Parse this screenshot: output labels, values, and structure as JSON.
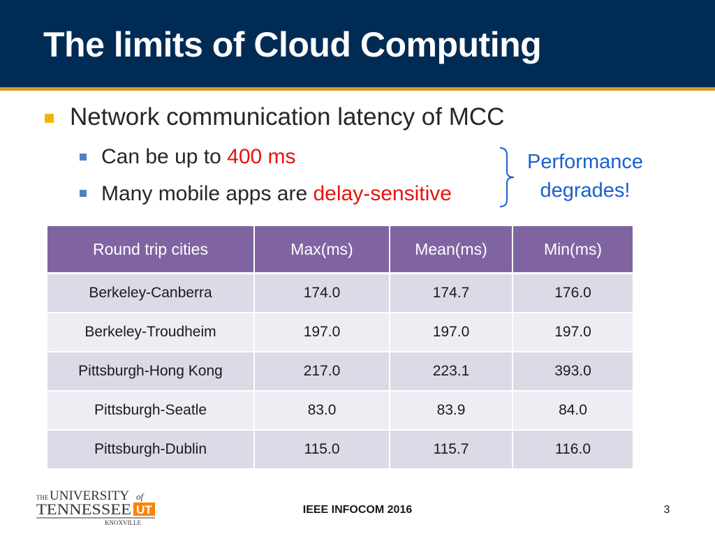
{
  "slide": {
    "title": "The limits of Cloud Computing",
    "bullets": {
      "main": "Network communication latency of MCC",
      "sub1_prefix": "Can be up to ",
      "sub1_highlight": "400 ms",
      "sub2_prefix": "Many mobile apps are ",
      "sub2_highlight": "delay-sensitive"
    },
    "callout": {
      "line1": "Performance",
      "line2": "degrades!"
    },
    "colors": {
      "header": "#002b55",
      "accent": "#c9a227",
      "highlight": "#e8120c",
      "callout": "#1a5fd1",
      "table_header": "#8064a2"
    }
  },
  "table": {
    "headers": [
      "Round trip cities",
      "Max(ms)",
      "Mean(ms)",
      "Min(ms)"
    ],
    "rows": [
      [
        "Berkeley-Canberra",
        "174.0",
        "174.7",
        "176.0"
      ],
      [
        "Berkeley-Troudheim",
        "197.0",
        "197.0",
        "197.0"
      ],
      [
        "Pittsburgh-Hong Kong",
        "217.0",
        "223.1",
        "393.0"
      ],
      [
        "Pittsburgh-Seatle",
        "83.0",
        "83.9",
        "84.0"
      ],
      [
        "Pittsburgh-Dublin",
        "115.0",
        "115.7",
        "116.0"
      ]
    ]
  },
  "footer": {
    "logo": {
      "the": "THE",
      "university": "UNIVERSITY",
      "of": "of",
      "tennessee": "TENNESSEE",
      "knoxville": "KNOXVILLE",
      "mark": "UT"
    },
    "center": "IEEE INFOCOM 2016",
    "page": "3"
  }
}
